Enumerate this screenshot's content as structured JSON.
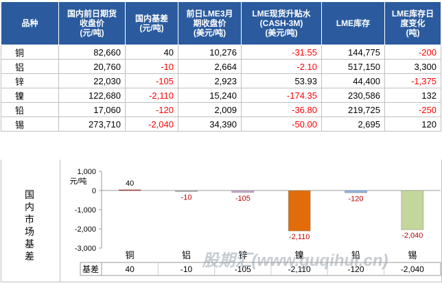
{
  "table": {
    "headers": [
      "品种",
      "国内前日期货收盘价(元/吨)",
      "国内基差(元/吨)",
      "前日LME3月期收盘价(美元/吨)",
      "LME现货升贴水(CASH-3M)(美元/吨)",
      "LME库存(吨)",
      "LME库存日度变化(吨)"
    ],
    "header_lines": [
      [
        "品种"
      ],
      [
        "国内前日期货",
        "收盘价",
        "(元/吨)"
      ],
      [
        "国内基差",
        "(元/吨)"
      ],
      [
        "前日LME3月",
        "期收盘价",
        "(美元/吨)"
      ],
      [
        "LME现货升贴水",
        "(CASH-3M)",
        "(美元/吨)"
      ],
      [
        "LME库存"
      ],
      [
        "LME库存日",
        "度变化",
        "(吨)"
      ]
    ],
    "rows": [
      [
        "铜",
        "82,660",
        "40",
        "10,276",
        "-31.55",
        "144,775",
        "-200"
      ],
      [
        "铝",
        "20,760",
        "-10",
        "2,664",
        "-2.10",
        "517,150",
        "3,300"
      ],
      [
        "锌",
        "22,030",
        "-105",
        "2,923",
        "53.93",
        "44,400",
        "-1,375"
      ],
      [
        "镍",
        "122,680",
        "-2,110",
        "15,240",
        "-174.35",
        "230,586",
        "132"
      ],
      [
        "铅",
        "17,060",
        "-120",
        "2,009",
        "-36.80",
        "219,725",
        "-250"
      ],
      [
        "锡",
        "273,710",
        "-2,040",
        "34,390",
        "-50.00",
        "2,695",
        "120"
      ]
    ]
  },
  "side_label": "国内市场基差",
  "chart_data": {
    "type": "bar",
    "categories": [
      "铜",
      "铝",
      "锌",
      "镍",
      "铅",
      "锡"
    ],
    "series": [
      {
        "name": "基差",
        "values": [
          40,
          -10,
          -105,
          -2110,
          -120,
          -2040
        ]
      }
    ],
    "data_labels": [
      "40",
      "-10",
      "-105",
      "-2,110",
      "-120",
      "-2,040"
    ],
    "ylim": [
      -3000,
      1000
    ],
    "yticks": [
      1000,
      0,
      -1000,
      -2000,
      -3000
    ],
    "ytick_labels": [
      "1,000",
      "0",
      "-1,000",
      "-2,000",
      "-3,000"
    ],
    "ylabel": "元/吨",
    "bar_colors": [
      "#c0392b",
      "#aaaaaa",
      "#c9a6c9",
      "#e36c0a",
      "#8db3e2",
      "#c3d69b"
    ],
    "data_table_label": "基差"
  },
  "watermark": "股期汇(www.guqihui.cn)",
  "colors": {
    "header_bg": "#2b5b9e",
    "negative": "#ff0000"
  }
}
